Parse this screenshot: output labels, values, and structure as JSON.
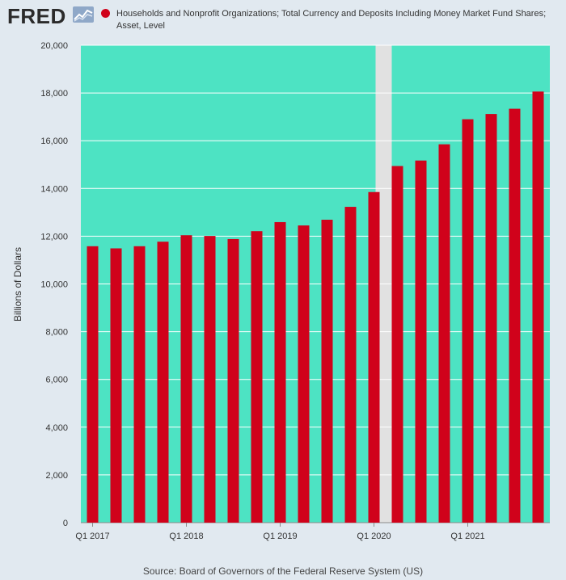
{
  "brand": {
    "logo_text": "FRED"
  },
  "colors": {
    "page_bg": "#e1e9f0",
    "plot_bg": "#4de3c3",
    "bar": "#d0021b",
    "recession": "#e1e1e1",
    "grid": "#ffffff",
    "axis_text": "#333333"
  },
  "chart_data": {
    "type": "bar",
    "title": "",
    "series": [
      {
        "name": "Households and Nonprofit Organizations; Total Currency and Deposits Including Money Market Fund Shares; Asset, Level",
        "color": "#d0021b",
        "values": [
          11580,
          11490,
          11580,
          11770,
          12040,
          12010,
          11880,
          12210,
          12590,
          12450,
          12690,
          13230,
          13850,
          14940,
          15170,
          15850,
          16900,
          17120,
          17340,
          18060
        ]
      }
    ],
    "categories": [
      "Q1 2017",
      "Q2 2017",
      "Q3 2017",
      "Q4 2017",
      "Q1 2018",
      "Q2 2018",
      "Q3 2018",
      "Q4 2018",
      "Q1 2019",
      "Q2 2019",
      "Q3 2019",
      "Q4 2019",
      "Q1 2020",
      "Q2 2020",
      "Q3 2020",
      "Q4 2020",
      "Q1 2021",
      "Q2 2021",
      "Q3 2021",
      "Q4 2021"
    ],
    "x_tick_labels": [
      {
        "index": 0,
        "label": "Q1 2017"
      },
      {
        "index": 4,
        "label": "Q1 2018"
      },
      {
        "index": 8,
        "label": "Q1 2019"
      },
      {
        "index": 12,
        "label": "Q1 2020"
      },
      {
        "index": 16,
        "label": "Q1 2021"
      }
    ],
    "ylabel": "Billions of Dollars",
    "xlabel": "",
    "ylim": [
      0,
      20000
    ],
    "y_ticks": [
      0,
      2000,
      4000,
      6000,
      8000,
      10000,
      12000,
      14000,
      16000,
      18000,
      20000
    ],
    "y_tick_labels": [
      "0",
      "2,000",
      "4,000",
      "6,000",
      "8,000",
      "10,000",
      "12,000",
      "14,000",
      "16,000",
      "18,000",
      "20,000"
    ],
    "recession_shading": {
      "from": "Q1 2020",
      "to": "Q2 2020"
    },
    "grid": true,
    "legend_position": "top"
  },
  "footer": {
    "source": "Source: Board of Governors of the Federal Reserve System (US)"
  }
}
